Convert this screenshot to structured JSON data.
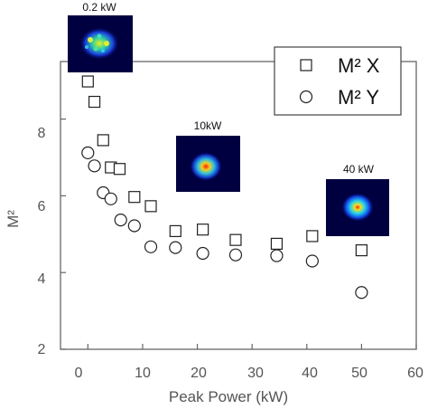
{
  "chart_data": {
    "type": "scatter",
    "xlabel": "Peak Power (kW)",
    "ylabel": "M²",
    "xlim": [
      -5,
      60
    ],
    "ylim": [
      2,
      9.5
    ],
    "xticks": [
      "0",
      "10",
      "20",
      "30",
      "40",
      "50",
      "60"
    ],
    "yticks": [
      "2",
      "4",
      "6",
      "8"
    ],
    "legend_position": "top-right",
    "series": [
      {
        "name": "M² X",
        "marker": "square",
        "x": [
          0.0,
          1.2,
          2.8,
          4.2,
          5.8,
          8.5,
          11.5,
          16.0,
          21.0,
          27.0,
          34.5,
          41.0,
          50.0
        ],
        "y": [
          8.98,
          8.45,
          7.45,
          6.74,
          6.7,
          5.97,
          5.73,
          5.08,
          5.12,
          4.85,
          4.75,
          4.95,
          4.58
        ]
      },
      {
        "name": "M² Y",
        "marker": "circle",
        "x": [
          0.0,
          1.2,
          2.8,
          4.2,
          6.0,
          8.5,
          11.5,
          16.0,
          21.0,
          27.0,
          34.5,
          41.0,
          50.0
        ],
        "y": [
          7.12,
          6.78,
          6.08,
          5.92,
          5.37,
          5.22,
          4.67,
          4.65,
          4.5,
          4.46,
          4.44,
          4.3,
          3.48
        ]
      }
    ],
    "annotations": [
      {
        "text": "0.2 kW",
        "x": 1.0,
        "y": 9.15
      },
      {
        "text": "10kW",
        "x": 22.0,
        "y": 7.2
      },
      {
        "text": "40 kW",
        "x": 43.0,
        "y": 5.95
      }
    ]
  }
}
